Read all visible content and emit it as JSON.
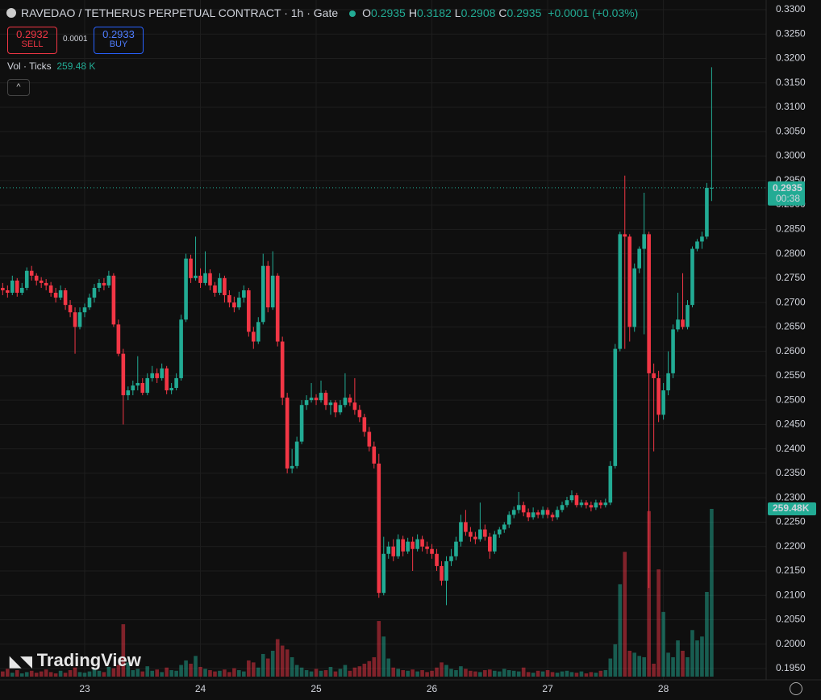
{
  "header": {
    "title": "RAVEDAO / TETHERUS PERPETUAL CONTRACT · 1h · Gate",
    "ohlc": [
      {
        "label": "O",
        "value": "0.2935"
      },
      {
        "label": "H",
        "value": "0.3182"
      },
      {
        "label": "L",
        "value": "0.2908"
      },
      {
        "label": "C",
        "value": "0.2935"
      }
    ],
    "change": "+0.0001 (+0.03%)",
    "sell": {
      "price": "0.2932",
      "label": "SELL"
    },
    "spread": "0.0001",
    "buy": {
      "price": "0.2933",
      "label": "BUY"
    },
    "indicator": "Vol · Ticks",
    "indicator_value": "259.48 K",
    "logo": "TradingView"
  },
  "chart_data": {
    "type": "candlestick",
    "colors": {
      "up": "#22ab94",
      "down": "#f23645"
    },
    "ylim": [
      0.195,
      0.33
    ],
    "yticks": [
      {
        "value": 0.33,
        "label": "0.3300"
      },
      {
        "value": 0.325,
        "label": "0.3250"
      },
      {
        "value": 0.32,
        "label": "0.3200"
      },
      {
        "value": 0.315,
        "label": "0.3150"
      },
      {
        "value": 0.31,
        "label": "0.3100"
      },
      {
        "value": 0.305,
        "label": "0.3050"
      },
      {
        "value": 0.3,
        "label": "0.3000"
      },
      {
        "value": 0.295,
        "label": "0.2950"
      },
      {
        "value": 0.29,
        "label": "0.2900"
      },
      {
        "value": 0.285,
        "label": "0.2850"
      },
      {
        "value": 0.28,
        "label": "0.2800"
      },
      {
        "value": 0.275,
        "label": "0.2750"
      },
      {
        "value": 0.27,
        "label": "0.2700"
      },
      {
        "value": 0.265,
        "label": "0.2650"
      },
      {
        "value": 0.26,
        "label": "0.2600"
      },
      {
        "value": 0.255,
        "label": "0.2550"
      },
      {
        "value": 0.25,
        "label": "0.2500"
      },
      {
        "value": 0.245,
        "label": "0.2450"
      },
      {
        "value": 0.24,
        "label": "0.2400"
      },
      {
        "value": 0.235,
        "label": "0.2350"
      },
      {
        "value": 0.23,
        "label": "0.2300"
      },
      {
        "value": 0.225,
        "label": "0.2250"
      },
      {
        "value": 0.22,
        "label": "0.2200"
      },
      {
        "value": 0.215,
        "label": "0.2150"
      },
      {
        "value": 0.21,
        "label": "0.2100"
      },
      {
        "value": 0.205,
        "label": "0.2050"
      },
      {
        "value": 0.2,
        "label": "0.2000"
      },
      {
        "value": 0.195,
        "label": "0.1950"
      }
    ],
    "xticks": [
      {
        "value": 17,
        "label": "23"
      },
      {
        "value": 41,
        "label": "24"
      },
      {
        "value": 65,
        "label": "25"
      },
      {
        "value": 89,
        "label": "26"
      },
      {
        "value": 113,
        "label": "27"
      },
      {
        "value": 137,
        "label": "28"
      }
    ],
    "grid": true,
    "last_price": {
      "value": 0.2935,
      "label": "0.2935",
      "countdown": "00:38"
    },
    "volume_label": "259.48K",
    "ohlc": [
      [
        0.273,
        0.274,
        0.2715,
        0.2725
      ],
      [
        0.2725,
        0.2735,
        0.271,
        0.272
      ],
      [
        0.272,
        0.2755,
        0.2715,
        0.2745
      ],
      [
        0.2745,
        0.275,
        0.2712,
        0.272
      ],
      [
        0.272,
        0.274,
        0.2715,
        0.273
      ],
      [
        0.273,
        0.2772,
        0.2725,
        0.2765
      ],
      [
        0.2765,
        0.2775,
        0.2745,
        0.2755
      ],
      [
        0.2755,
        0.276,
        0.2735,
        0.2745
      ],
      [
        0.2745,
        0.2752,
        0.273,
        0.274
      ],
      [
        0.274,
        0.2748,
        0.2725,
        0.2735
      ],
      [
        0.2735,
        0.2742,
        0.2712,
        0.272
      ],
      [
        0.272,
        0.273,
        0.27,
        0.271
      ],
      [
        0.271,
        0.2735,
        0.2705,
        0.2725
      ],
      [
        0.2725,
        0.273,
        0.2685,
        0.2695
      ],
      [
        0.2695,
        0.2705,
        0.267,
        0.268
      ],
      [
        0.268,
        0.269,
        0.2595,
        0.265
      ],
      [
        0.265,
        0.269,
        0.2645,
        0.268
      ],
      [
        0.268,
        0.2698,
        0.267,
        0.269
      ],
      [
        0.269,
        0.2718,
        0.2685,
        0.271
      ],
      [
        0.271,
        0.2738,
        0.27,
        0.273
      ],
      [
        0.273,
        0.2748,
        0.2722,
        0.274
      ],
      [
        0.274,
        0.275,
        0.2725,
        0.2735
      ],
      [
        0.2735,
        0.2765,
        0.273,
        0.2755
      ],
      [
        0.2755,
        0.276,
        0.265,
        0.2655
      ],
      [
        0.2655,
        0.2665,
        0.259,
        0.2595
      ],
      [
        0.2595,
        0.2605,
        0.245,
        0.251
      ],
      [
        0.251,
        0.2528,
        0.25,
        0.252
      ],
      [
        0.252,
        0.254,
        0.251,
        0.253
      ],
      [
        0.253,
        0.259,
        0.252,
        0.2535
      ],
      [
        0.2535,
        0.2545,
        0.251,
        0.2515
      ],
      [
        0.2515,
        0.2555,
        0.251,
        0.2545
      ],
      [
        0.2545,
        0.257,
        0.2538,
        0.2555
      ],
      [
        0.2555,
        0.2565,
        0.2535,
        0.2545
      ],
      [
        0.2545,
        0.2575,
        0.254,
        0.2565
      ],
      [
        0.2565,
        0.257,
        0.2512,
        0.252
      ],
      [
        0.252,
        0.2535,
        0.2512,
        0.2525
      ],
      [
        0.2525,
        0.2555,
        0.252,
        0.2545
      ],
      [
        0.2545,
        0.2675,
        0.254,
        0.2665
      ],
      [
        0.2665,
        0.28,
        0.266,
        0.279
      ],
      [
        0.279,
        0.2798,
        0.274,
        0.275
      ],
      [
        0.275,
        0.2835,
        0.2745,
        0.2755
      ],
      [
        0.2755,
        0.277,
        0.273,
        0.274
      ],
      [
        0.274,
        0.2805,
        0.2735,
        0.276
      ],
      [
        0.276,
        0.2768,
        0.2725,
        0.2735
      ],
      [
        0.2735,
        0.2742,
        0.2712,
        0.272
      ],
      [
        0.272,
        0.276,
        0.2715,
        0.275
      ],
      [
        0.275,
        0.2755,
        0.27,
        0.2715
      ],
      [
        0.2715,
        0.2725,
        0.269,
        0.27
      ],
      [
        0.27,
        0.2712,
        0.268,
        0.269
      ],
      [
        0.269,
        0.2722,
        0.2685,
        0.271
      ],
      [
        0.271,
        0.2735,
        0.27,
        0.2725
      ],
      [
        0.2725,
        0.273,
        0.263,
        0.264
      ],
      [
        0.264,
        0.265,
        0.2605,
        0.262
      ],
      [
        0.262,
        0.267,
        0.2615,
        0.266
      ],
      [
        0.266,
        0.28,
        0.2655,
        0.2775
      ],
      [
        0.2775,
        0.2785,
        0.268,
        0.269
      ],
      [
        0.269,
        0.2805,
        0.2685,
        0.2755
      ],
      [
        0.2755,
        0.276,
        0.261,
        0.262
      ],
      [
        0.262,
        0.263,
        0.249,
        0.2505
      ],
      [
        0.2505,
        0.2515,
        0.235,
        0.236
      ],
      [
        0.236,
        0.24,
        0.235,
        0.2365
      ],
      [
        0.2365,
        0.2425,
        0.236,
        0.2415
      ],
      [
        0.2415,
        0.25,
        0.241,
        0.249
      ],
      [
        0.249,
        0.251,
        0.248,
        0.25
      ],
      [
        0.25,
        0.2535,
        0.2495,
        0.2505
      ],
      [
        0.2505,
        0.2512,
        0.249,
        0.25
      ],
      [
        0.25,
        0.254,
        0.2495,
        0.2515
      ],
      [
        0.2515,
        0.252,
        0.248,
        0.249
      ],
      [
        0.249,
        0.25,
        0.247,
        0.2495
      ],
      [
        0.2495,
        0.25,
        0.2465,
        0.2475
      ],
      [
        0.2475,
        0.25,
        0.247,
        0.249
      ],
      [
        0.249,
        0.2555,
        0.2485,
        0.2505
      ],
      [
        0.2505,
        0.2512,
        0.2488,
        0.2495
      ],
      [
        0.2495,
        0.2545,
        0.247,
        0.248
      ],
      [
        0.248,
        0.249,
        0.2455,
        0.2465
      ],
      [
        0.2465,
        0.2472,
        0.2425,
        0.2435
      ],
      [
        0.2435,
        0.2445,
        0.2395,
        0.2405
      ],
      [
        0.2405,
        0.2415,
        0.236,
        0.237
      ],
      [
        0.237,
        0.239,
        0.2095,
        0.2105
      ],
      [
        0.2105,
        0.222,
        0.21,
        0.2185
      ],
      [
        0.2185,
        0.221,
        0.2175,
        0.22
      ],
      [
        0.22,
        0.2215,
        0.217,
        0.218
      ],
      [
        0.218,
        0.2225,
        0.2175,
        0.2215
      ],
      [
        0.2215,
        0.2222,
        0.218,
        0.219
      ],
      [
        0.219,
        0.2218,
        0.2185,
        0.221
      ],
      [
        0.221,
        0.222,
        0.215,
        0.2195
      ],
      [
        0.2195,
        0.2225,
        0.219,
        0.2215
      ],
      [
        0.2215,
        0.2222,
        0.219,
        0.22
      ],
      [
        0.22,
        0.221,
        0.2185,
        0.2195
      ],
      [
        0.2195,
        0.2205,
        0.2175,
        0.2185
      ],
      [
        0.2185,
        0.2195,
        0.215,
        0.216
      ],
      [
        0.216,
        0.217,
        0.212,
        0.213
      ],
      [
        0.213,
        0.218,
        0.208,
        0.217
      ],
      [
        0.217,
        0.2195,
        0.216,
        0.218
      ],
      [
        0.218,
        0.222,
        0.2172,
        0.221
      ],
      [
        0.221,
        0.2265,
        0.22,
        0.225
      ],
      [
        0.225,
        0.2275,
        0.2222,
        0.223
      ],
      [
        0.223,
        0.224,
        0.221,
        0.222
      ],
      [
        0.222,
        0.223,
        0.2205,
        0.2215
      ],
      [
        0.2215,
        0.229,
        0.221,
        0.2235
      ],
      [
        0.2235,
        0.2245,
        0.2212,
        0.222
      ],
      [
        0.222,
        0.2228,
        0.2175,
        0.219
      ],
      [
        0.219,
        0.2232,
        0.2185,
        0.2225
      ],
      [
        0.2225,
        0.224,
        0.2218,
        0.2235
      ],
      [
        0.2235,
        0.225,
        0.2228,
        0.2245
      ],
      [
        0.2245,
        0.2272,
        0.2238,
        0.2265
      ],
      [
        0.2265,
        0.2282,
        0.2258,
        0.2275
      ],
      [
        0.2275,
        0.2312,
        0.2268,
        0.2285
      ],
      [
        0.2285,
        0.2292,
        0.2262,
        0.227
      ],
      [
        0.227,
        0.2278,
        0.2252,
        0.226
      ],
      [
        0.226,
        0.228,
        0.2255,
        0.227
      ],
      [
        0.227,
        0.2275,
        0.2258,
        0.2265
      ],
      [
        0.2265,
        0.2282,
        0.2258,
        0.2275
      ],
      [
        0.2275,
        0.228,
        0.2258,
        0.2265
      ],
      [
        0.2265,
        0.227,
        0.2252,
        0.226
      ],
      [
        0.226,
        0.2282,
        0.2255,
        0.2275
      ],
      [
        0.2275,
        0.2292,
        0.227,
        0.2285
      ],
      [
        0.2285,
        0.2302,
        0.228,
        0.2295
      ],
      [
        0.2295,
        0.2315,
        0.229,
        0.2305
      ],
      [
        0.2305,
        0.231,
        0.228,
        0.2285
      ],
      [
        0.2285,
        0.2296,
        0.228,
        0.229
      ],
      [
        0.229,
        0.2295,
        0.2278,
        0.2285
      ],
      [
        0.2285,
        0.2292,
        0.2272,
        0.228
      ],
      [
        0.228,
        0.2296,
        0.2275,
        0.229
      ],
      [
        0.229,
        0.2295,
        0.2278,
        0.2285
      ],
      [
        0.2285,
        0.2298,
        0.228,
        0.229
      ],
      [
        0.229,
        0.2375,
        0.2285,
        0.2365
      ],
      [
        0.2365,
        0.2615,
        0.236,
        0.2605
      ],
      [
        0.2605,
        0.2845,
        0.26,
        0.284
      ],
      [
        0.284,
        0.296,
        0.2605,
        0.2835
      ],
      [
        0.2835,
        0.284,
        0.262,
        0.265
      ],
      [
        0.265,
        0.278,
        0.264,
        0.277
      ],
      [
        0.277,
        0.2815,
        0.276,
        0.281
      ],
      [
        0.281,
        0.2925,
        0.2635,
        0.284
      ],
      [
        0.284,
        0.2845,
        0.2115,
        0.2555
      ],
      [
        0.2555,
        0.2575,
        0.2395,
        0.2545
      ],
      [
        0.2545,
        0.256,
        0.2455,
        0.247
      ],
      [
        0.247,
        0.2535,
        0.246,
        0.252
      ],
      [
        0.252,
        0.26,
        0.251,
        0.2555
      ],
      [
        0.2555,
        0.2655,
        0.2545,
        0.2645
      ],
      [
        0.2645,
        0.272,
        0.264,
        0.2665
      ],
      [
        0.2665,
        0.276,
        0.2645,
        0.265
      ],
      [
        0.265,
        0.2705,
        0.2645,
        0.2695
      ],
      [
        0.2695,
        0.2815,
        0.269,
        0.281
      ],
      [
        0.281,
        0.283,
        0.2805,
        0.2825
      ],
      [
        0.2825,
        0.2845,
        0.281,
        0.2835
      ],
      [
        0.2835,
        0.2945,
        0.283,
        0.2935
      ],
      [
        0.2935,
        0.3182,
        0.2908,
        0.2935
      ]
    ],
    "volume": [
      8,
      12,
      6,
      10,
      5,
      7,
      9,
      6,
      8,
      11,
      7,
      5,
      9,
      6,
      10,
      14,
      7,
      6,
      8,
      12,
      9,
      7,
      15,
      13,
      18,
      81,
      22,
      10,
      12,
      8,
      16,
      9,
      11,
      7,
      14,
      10,
      9,
      18,
      25,
      20,
      32,
      15,
      12,
      10,
      8,
      9,
      11,
      7,
      13,
      10,
      8,
      25,
      22,
      14,
      35,
      28,
      40,
      58,
      48,
      42,
      30,
      18,
      14,
      10,
      8,
      12,
      9,
      10,
      15,
      8,
      12,
      18,
      9,
      14,
      16,
      20,
      24,
      30,
      86,
      62,
      28,
      14,
      12,
      10,
      9,
      11,
      8,
      10,
      7,
      9,
      14,
      22,
      18,
      12,
      10,
      16,
      12,
      9,
      8,
      7,
      10,
      11,
      9,
      8,
      12,
      10,
      9,
      8,
      14,
      7,
      6,
      9,
      8,
      10,
      7,
      6,
      8,
      9,
      7,
      6,
      8,
      5,
      7,
      6,
      9,
      10,
      28,
      50,
      143,
      193,
      40,
      37,
      32,
      30,
      256,
      20,
      166,
      100,
      37,
      30,
      56,
      40,
      30,
      72,
      56,
      62,
      131,
      259.48
    ]
  }
}
